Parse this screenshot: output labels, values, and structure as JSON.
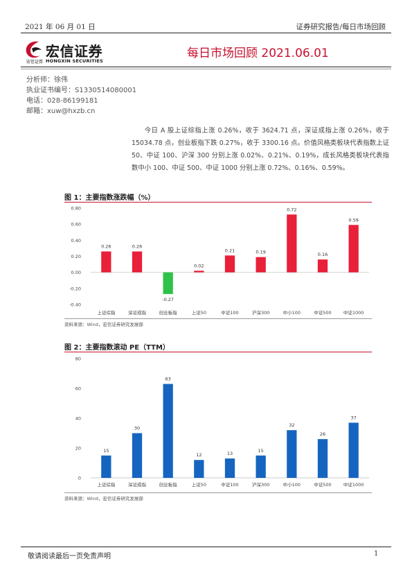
{
  "header": {
    "date": "2021 年 06 月 01 日",
    "category": "证券研究报告/每日市场回顾"
  },
  "logo": {
    "name_cn": "宏信证券",
    "small_cn": "宏信证券",
    "name_en": "HONGXIN SECURITIES",
    "mark_color": "#c8102e"
  },
  "title": "每日市场回顾 2021.06.01",
  "analyst": {
    "name": "分析师：徐伟",
    "license": "执业证书编号：S1330514080001",
    "phone": "电话：028-86199181",
    "email": "邮箱：xuw@hxzb.cn"
  },
  "summary": "今日 A 股上证综指上涨 0.26%，收于 3624.71 点，深证成指上涨 0.26%，收于 15034.78 点，创业板指下跌 0.27%，收于 3300.16 点。价值风格类板块代表指数上证 50、中证 100、沪深 300 分别上涨 0.02%、0.21%、0.19%，成长风格类板块代表指数中小 100、中证 500、中证 1000 分别上涨 0.72%、0.16%、0.59%。",
  "figures": [
    {
      "title": "图 1：主要指数涨跌幅（%）",
      "source": "资料来源：Wind，宏信证券研究发展部"
    },
    {
      "title": "图 2：主要指数滚动 PE（TTM）",
      "source": "资料来源：Wind，宏信证券研究发展部"
    }
  ],
  "chart_data": [
    {
      "type": "bar",
      "title": "图 1：主要指数涨跌幅（%）",
      "categories": [
        "上证综指",
        "深证成指",
        "创业板指",
        "上证50",
        "中证100",
        "沪深300",
        "中小100",
        "中证500",
        "中证1000"
      ],
      "values": [
        0.26,
        0.26,
        -0.27,
        0.02,
        0.21,
        0.19,
        0.72,
        0.16,
        0.59
      ],
      "value_labels": [
        "0.26",
        "0.26",
        "-0.27",
        "0.02",
        "0.21",
        "0.19",
        "0.72",
        "0.16",
        "0.59"
      ],
      "ylim": [
        -0.4,
        0.8
      ],
      "yticks": [
        "0.80",
        "0.60",
        "0.40",
        "0.20",
        "0.00",
        "-0.20",
        "-0.40"
      ],
      "ytick_values": [
        0.8,
        0.6,
        0.4,
        0.2,
        0.0,
        -0.2,
        -0.4
      ],
      "positive_color": "#e8203a",
      "negative_color": "#2ec24a",
      "grid": false
    },
    {
      "type": "bar",
      "title": "图 2：主要指数滚动 PE（TTM）",
      "categories": [
        "上证综指",
        "深证成指",
        "创业板指",
        "上证50",
        "中证100",
        "沪深300",
        "中小100",
        "中证500",
        "中证1000"
      ],
      "values": [
        15,
        30,
        63,
        12,
        13,
        15,
        32,
        26,
        37
      ],
      "value_labels": [
        "15",
        "30",
        "63",
        "12",
        "13",
        "15",
        "32",
        "26",
        "37"
      ],
      "ylim": [
        0,
        80
      ],
      "yticks": [
        "80",
        "60",
        "40",
        "20",
        "0"
      ],
      "ytick_values": [
        80,
        60,
        40,
        20,
        0
      ],
      "bar_color": "#1565c0",
      "grid": false
    }
  ],
  "footer": {
    "disclaimer": "敬请阅读最后一页免责声明",
    "page": "1"
  }
}
